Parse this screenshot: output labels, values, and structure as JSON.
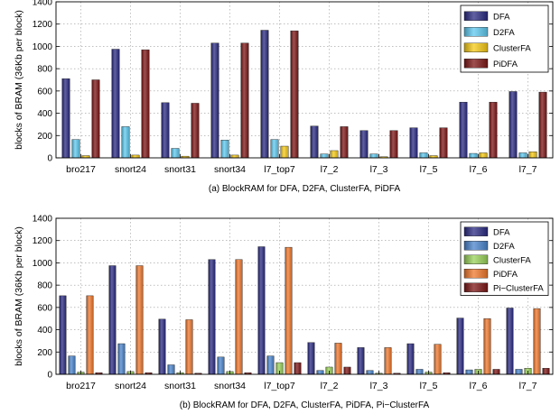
{
  "chart_data": [
    {
      "type": "bar",
      "caption": "(a) BlockRAM for DFA, D2FA, ClusterFA, PiDFA",
      "ylabel": "blocks of BRAM (36Kb per block)",
      "xlabel": "",
      "ylim": [
        0,
        1400
      ],
      "yticks": [
        0,
        200,
        400,
        600,
        800,
        1000,
        1200,
        1400
      ],
      "grid": true,
      "legend": "top-right",
      "categories": [
        "bro217",
        "snort24",
        "snort31",
        "snort34",
        "l7_top7",
        "l7_2",
        "l7_3",
        "l7_5",
        "l7_6",
        "l7_7"
      ],
      "series": [
        {
          "name": "DFA",
          "color": "#2b2b83",
          "values": [
            710,
            975,
            495,
            1030,
            1145,
            285,
            245,
            270,
            500,
            595
          ]
        },
        {
          "name": "D2FA",
          "color": "#5fcaf0",
          "values": [
            165,
            280,
            85,
            160,
            165,
            35,
            35,
            45,
            40,
            45
          ]
        },
        {
          "name": "ClusterFA",
          "color": "#f7cb16",
          "values": [
            20,
            25,
            15,
            25,
            105,
            65,
            10,
            20,
            45,
            55
          ]
        },
        {
          "name": "PiDFA",
          "color": "#7e1616",
          "values": [
            700,
            970,
            490,
            1030,
            1140,
            280,
            245,
            270,
            500,
            590
          ]
        }
      ]
    },
    {
      "type": "bar",
      "caption": "(b) BlockRAM for DFA, D2FA, ClusterFA, PiDFA, Pi−ClusterFA",
      "ylabel": "blocks of BRAM (36Kb per block)",
      "xlabel": "",
      "ylim": [
        0,
        1400
      ],
      "yticks": [
        0,
        200,
        400,
        600,
        800,
        1000,
        1200,
        1400
      ],
      "grid": true,
      "legend": "top-right",
      "categories": [
        "bro217",
        "snort24",
        "snort31",
        "snort34",
        "l7_top7",
        "l7_2",
        "l7_3",
        "l7_5",
        "l7_6",
        "l7_7"
      ],
      "series": [
        {
          "name": "DFA",
          "color": "#2b2b83",
          "values": [
            705,
            975,
            495,
            1030,
            1145,
            285,
            240,
            275,
            505,
            595
          ]
        },
        {
          "name": "D2FA",
          "color": "#4a84cd",
          "values": [
            165,
            275,
            85,
            155,
            165,
            35,
            35,
            45,
            40,
            45
          ]
        },
        {
          "name": "ClusterFA",
          "color": "#9ad35a",
          "values": [
            20,
            25,
            15,
            25,
            105,
            65,
            10,
            20,
            45,
            55
          ]
        },
        {
          "name": "PiDFA",
          "color": "#f0782c",
          "values": [
            705,
            975,
            490,
            1030,
            1140,
            280,
            240,
            270,
            500,
            590
          ]
        },
        {
          "name": "Pi−ClusterFA",
          "color": "#7e1616",
          "values": [
            15,
            15,
            10,
            15,
            105,
            65,
            10,
            15,
            45,
            55
          ]
        }
      ]
    }
  ]
}
